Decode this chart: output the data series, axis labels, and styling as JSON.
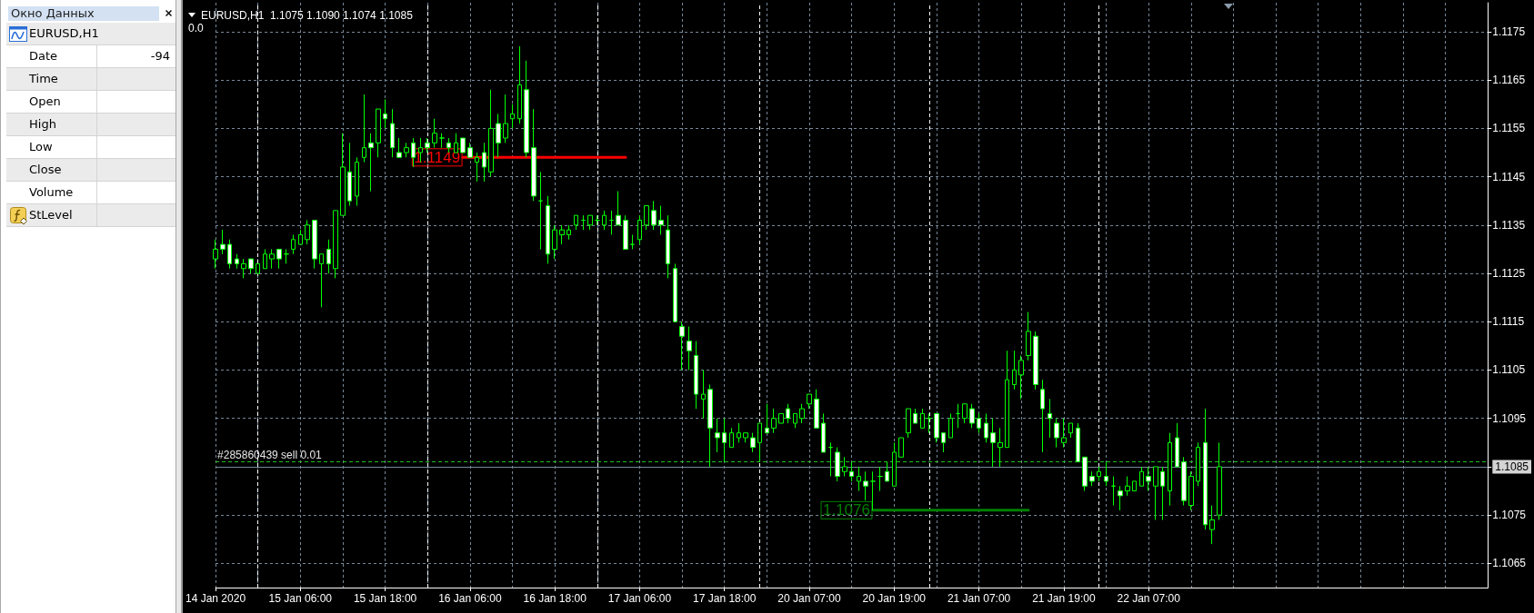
{
  "chart_data": [
    {
      "type": "other",
      "title": "Окно Данных",
      "annotations": [
        "EURUSD,H1",
        "Date",
        "-94",
        "Time",
        "Open",
        "High",
        "Low",
        "Close",
        "Volume",
        "StLevel"
      ]
    },
    {
      "type": "candlestick",
      "title": "EURUSD,H1  1.1075 1.1090 1.1074 1.1085",
      "annotations": [
        "0.0"
      ],
      "categories": [
        "14 Jan 2020",
        null,
        null,
        null,
        null,
        null,
        null,
        null,
        null,
        null,
        null,
        null,
        "15 Jan 06:00",
        null,
        null,
        null,
        null,
        null,
        null,
        null,
        null,
        null,
        null,
        null,
        "15 Jan 18:00",
        null,
        null,
        null,
        null,
        null,
        null,
        null,
        null,
        null,
        null,
        null,
        "16 Jan 06:00",
        null,
        null,
        null,
        null,
        null,
        null,
        null,
        null,
        null,
        null,
        null,
        "16 Jan 18:00",
        null,
        null,
        null,
        null,
        null,
        null,
        null,
        null,
        null,
        null,
        null,
        "17 Jan 06:00",
        null,
        null,
        null,
        null,
        null,
        null,
        null,
        null,
        null,
        null,
        null,
        "17 Jan 18:00",
        null,
        null,
        null,
        null,
        null,
        null,
        null,
        null,
        null,
        null,
        null,
        "20 Jan 07:00",
        null,
        null,
        null,
        null,
        null,
        null,
        null,
        null,
        null,
        null,
        null,
        "20 Jan 19:00",
        null,
        null,
        null,
        null,
        null,
        null,
        null,
        null,
        null,
        null,
        null,
        "21 Jan 07:00",
        null,
        null,
        null,
        null,
        null,
        null,
        null,
        null,
        null,
        null,
        null,
        "21 Jan 19:00",
        null,
        null,
        null,
        null,
        null,
        null,
        null,
        null,
        null,
        null,
        null,
        "22 Jan 07:00",
        null,
        null,
        null,
        null,
        null,
        null,
        null,
        null,
        null,
        null,
        null,
        null,
        null,
        null,
        null,
        null,
        null,
        null,
        null,
        null,
        null,
        null,
        null,
        null,
        null,
        null,
        null,
        null,
        null,
        null,
        null,
        null,
        null,
        null,
        null,
        null,
        null,
        null,
        null,
        null,
        null,
        null,
        null,
        null,
        null,
        null,
        null,
        null
      ],
      "ohlc": [
        [
          1.1128,
          1.1132,
          1.1126,
          1.113
        ],
        [
          1.1131,
          1.1134,
          1.1129,
          1.113
        ],
        [
          1.1131,
          1.1132,
          1.1126,
          1.1127
        ],
        [
          1.1128,
          1.1129,
          1.1126,
          1.1127
        ],
        [
          1.1126,
          1.1128,
          1.1124,
          1.1127
        ],
        [
          1.1128,
          1.1128,
          1.1125,
          1.1126
        ],
        [
          1.1125,
          1.1127,
          1.1125,
          1.1127
        ],
        [
          1.1126,
          1.113,
          1.1126,
          1.1129
        ],
        [
          1.1128,
          1.113,
          1.1126,
          1.1129
        ],
        [
          1.113,
          1.113,
          1.1126,
          1.1128
        ],
        [
          1.1129,
          1.113,
          1.1127,
          1.1129
        ],
        [
          1.113,
          1.1133,
          1.1129,
          1.1132
        ],
        [
          1.1131,
          1.1134,
          1.1131,
          1.1133
        ],
        [
          1.1132,
          1.1136,
          1.1131,
          1.1135
        ],
        [
          1.1136,
          1.1136,
          1.1126,
          1.1128
        ],
        [
          1.1127,
          1.1129,
          1.1118,
          1.1129
        ],
        [
          1.113,
          1.1132,
          1.1125,
          1.1127
        ],
        [
          1.1126,
          1.1138,
          1.1124,
          1.1138
        ],
        [
          1.1137,
          1.1154,
          1.1137,
          1.1147
        ],
        [
          1.1146,
          1.1152,
          1.1139,
          1.114
        ],
        [
          1.1141,
          1.1149,
          1.1139,
          1.1148
        ],
        [
          1.1149,
          1.1162,
          1.1148,
          1.1151
        ],
        [
          1.1152,
          1.1154,
          1.1142,
          1.1151
        ],
        [
          1.1152,
          1.1159,
          1.1149,
          1.1159
        ],
        [
          1.1158,
          1.1161,
          1.1155,
          1.1157
        ],
        [
          1.1156,
          1.1159,
          1.1149,
          1.1151
        ],
        [
          1.115,
          1.1153,
          1.1149,
          1.1149
        ],
        [
          1.115,
          1.1152,
          1.1149,
          1.1151
        ],
        [
          1.1152,
          1.1153,
          1.1147,
          1.1149
        ],
        [
          1.115,
          1.1153,
          1.1148,
          1.1151
        ],
        [
          1.1152,
          1.1153,
          1.115,
          1.1151
        ],
        [
          1.1152,
          1.1157,
          1.1151,
          1.1154
        ],
        [
          1.1153,
          1.1154,
          1.1151,
          1.1153
        ],
        [
          1.1152,
          1.1153,
          1.115,
          1.1151
        ],
        [
          1.115,
          1.1154,
          1.115,
          1.1152
        ],
        [
          1.1153,
          1.1153,
          1.115,
          1.115
        ],
        [
          1.1151,
          1.1152,
          1.1149,
          1.1149
        ],
        [
          1.1148,
          1.115,
          1.1144,
          1.1149
        ],
        [
          1.115,
          1.1152,
          1.1144,
          1.1147
        ],
        [
          1.1146,
          1.1163,
          1.1145,
          1.1155
        ],
        [
          1.1156,
          1.1158,
          1.1149,
          1.1152
        ],
        [
          1.1153,
          1.1162,
          1.1152,
          1.1156
        ],
        [
          1.1157,
          1.116,
          1.1155,
          1.1158
        ],
        [
          1.1157,
          1.1172,
          1.1156,
          1.1164
        ],
        [
          1.1163,
          1.1169,
          1.1149,
          1.115
        ],
        [
          1.1151,
          1.1159,
          1.114,
          1.1141
        ],
        [
          1.114,
          1.1146,
          1.113,
          1.114
        ],
        [
          1.1139,
          1.1141,
          1.1127,
          1.1129
        ],
        [
          1.113,
          1.1135,
          1.1128,
          1.1134
        ],
        [
          1.1133,
          1.1135,
          1.1131,
          1.1134
        ],
        [
          1.1133,
          1.1135,
          1.1132,
          1.1134
        ],
        [
          1.1135,
          1.1137,
          1.1134,
          1.1137
        ],
        [
          1.1136,
          1.1137,
          1.1134,
          1.1136
        ],
        [
          1.1135,
          1.1137,
          1.1134,
          1.1137
        ],
        [
          1.1136,
          1.1137,
          1.1135,
          1.1136
        ],
        [
          1.1135,
          1.1138,
          1.1134,
          1.1137
        ],
        [
          1.1136,
          1.1138,
          1.1133,
          1.1136
        ],
        [
          1.1137,
          1.1142,
          1.1135,
          1.1135
        ],
        [
          1.1136,
          1.1137,
          1.113,
          1.113
        ],
        [
          1.1131,
          1.1133,
          1.113,
          1.1131
        ],
        [
          1.1132,
          1.1137,
          1.1131,
          1.1136
        ],
        [
          1.1135,
          1.1139,
          1.1134,
          1.1139
        ],
        [
          1.1138,
          1.114,
          1.1134,
          1.1135
        ],
        [
          1.1136,
          1.1139,
          1.1133,
          1.1135
        ],
        [
          1.1134,
          1.1137,
          1.1124,
          1.1127
        ],
        [
          1.1126,
          1.1127,
          1.1115,
          1.1115
        ],
        [
          1.1114,
          1.1115,
          1.1105,
          1.1112
        ],
        [
          1.1111,
          1.1114,
          1.1105,
          1.1109
        ],
        [
          1.1108,
          1.1111,
          1.1097,
          1.11
        ],
        [
          1.1099,
          1.1105,
          1.1095,
          1.11
        ],
        [
          1.1101,
          1.1102,
          1.1085,
          1.1093
        ],
        [
          1.1092,
          1.1095,
          1.1088,
          1.1091
        ],
        [
          1.1092,
          1.1095,
          1.1086,
          1.109
        ],
        [
          1.1089,
          1.1093,
          1.1089,
          1.1092
        ],
        [
          1.1091,
          1.1094,
          1.109,
          1.1092
        ],
        [
          1.1091,
          1.1092,
          1.109,
          1.1092
        ],
        [
          1.1091,
          1.1092,
          1.1088,
          1.1089
        ],
        [
          1.109,
          1.1094,
          1.1086,
          1.1094
        ],
        [
          1.1093,
          1.1098,
          1.1092,
          1.1092
        ],
        [
          1.1093,
          1.1097,
          1.1092,
          1.1095
        ],
        [
          1.1094,
          1.1096,
          1.1094,
          1.1096
        ],
        [
          1.1097,
          1.1098,
          1.1094,
          1.1095
        ],
        [
          1.1094,
          1.1096,
          1.1093,
          1.1096
        ],
        [
          1.1095,
          1.1098,
          1.1094,
          1.1097
        ],
        [
          1.1098,
          1.11,
          1.1097,
          1.11
        ],
        [
          1.1099,
          1.1101,
          1.1093,
          1.1093
        ],
        [
          1.1094,
          1.1096,
          1.1088,
          1.1088
        ],
        [
          1.1089,
          1.109,
          1.1083,
          1.1089
        ],
        [
          1.1088,
          1.1089,
          1.1082,
          1.1083
        ],
        [
          1.1084,
          1.1087,
          1.1083,
          1.1085
        ],
        [
          1.1084,
          1.1086,
          1.1082,
          1.1083
        ],
        [
          1.1082,
          1.1085,
          1.108,
          1.1083
        ],
        [
          1.1082,
          1.1084,
          1.1078,
          1.1081
        ],
        [
          1.1082,
          1.1084,
          1.1076,
          1.1082
        ],
        [
          1.1083,
          1.1085,
          1.108,
          1.1083
        ],
        [
          1.1084,
          1.1086,
          1.1082,
          1.1082
        ],
        [
          1.1081,
          1.109,
          1.1081,
          1.1088
        ],
        [
          1.1087,
          1.1091,
          1.1087,
          1.1091
        ],
        [
          1.1092,
          1.1097,
          1.1091,
          1.1097
        ],
        [
          1.1096,
          1.1097,
          1.1094,
          1.1094
        ],
        [
          1.1093,
          1.1097,
          1.1093,
          1.1096
        ],
        [
          1.1095,
          1.1096,
          1.1092,
          1.1095
        ],
        [
          1.1096,
          1.1096,
          1.109,
          1.1091
        ],
        [
          1.1092,
          1.1092,
          1.1088,
          1.109
        ],
        [
          1.1091,
          1.1096,
          1.1091,
          1.1095
        ],
        [
          1.1096,
          1.1098,
          1.1093,
          1.1096
        ],
        [
          1.1095,
          1.1098,
          1.1094,
          1.1098
        ],
        [
          1.1097,
          1.1098,
          1.1093,
          1.1094
        ],
        [
          1.1095,
          1.1096,
          1.1092,
          1.1093
        ],
        [
          1.1094,
          1.1096,
          1.109,
          1.1091
        ],
        [
          1.1092,
          1.1095,
          1.1085,
          1.109
        ],
        [
          1.1089,
          1.1093,
          1.1085,
          1.109
        ],
        [
          1.1089,
          1.1109,
          1.1089,
          1.1103
        ],
        [
          1.1102,
          1.1109,
          1.1101,
          1.1105
        ],
        [
          1.1104,
          1.1108,
          1.1099,
          1.1107
        ],
        [
          1.1108,
          1.1117,
          1.1107,
          1.1113
        ],
        [
          1.1112,
          1.1113,
          1.1101,
          1.1102
        ],
        [
          1.1101,
          1.1103,
          1.1088,
          1.1097
        ],
        [
          1.1096,
          1.1099,
          1.1091,
          1.1095
        ],
        [
          1.1094,
          1.1095,
          1.1089,
          1.1091
        ],
        [
          1.109,
          1.1095,
          1.1089,
          1.1091
        ],
        [
          1.1092,
          1.1094,
          1.1091,
          1.1094
        ],
        [
          1.1093,
          1.1094,
          1.1086,
          1.1086
        ],
        [
          1.1087,
          1.1087,
          1.108,
          1.1081
        ],
        [
          1.1083,
          1.1084,
          1.1081,
          1.1082
        ],
        [
          1.1083,
          1.1085,
          1.1082,
          1.1084
        ],
        [
          1.1083,
          1.1086,
          1.1081,
          1.1082
        ],
        [
          1.1081,
          1.1083,
          1.1077,
          1.1081
        ],
        [
          1.108,
          1.1081,
          1.1076,
          1.1079
        ],
        [
          1.108,
          1.1083,
          1.1079,
          1.1081
        ],
        [
          1.108,
          1.1082,
          1.108,
          1.1082
        ],
        [
          1.1081,
          1.1085,
          1.1081,
          1.1084
        ],
        [
          1.1083,
          1.1085,
          1.108,
          1.1082
        ],
        [
          1.1081,
          1.1085,
          1.1074,
          1.1085
        ],
        [
          1.1084,
          1.1085,
          1.1074,
          1.1081
        ],
        [
          1.108,
          1.1092,
          1.1077,
          1.109
        ],
        [
          1.1091,
          1.1094,
          1.1085,
          1.1085
        ],
        [
          1.1086,
          1.1087,
          1.1077,
          1.1078
        ],
        [
          1.1077,
          1.1084,
          1.1076,
          1.1083
        ],
        [
          1.1082,
          1.109,
          1.1081,
          1.1089
        ],
        [
          1.109,
          1.1097,
          1.1072,
          1.1073
        ],
        [
          1.1072,
          1.1077,
          1.1069,
          1.1074
        ],
        [
          1.1075,
          1.109,
          1.1074,
          1.1085
        ],
        null,
        null,
        null,
        null,
        null,
        null,
        null,
        null,
        null,
        null,
        null,
        null,
        null,
        null,
        null,
        null,
        null,
        null,
        null,
        null,
        null,
        null,
        null,
        null,
        null,
        null,
        null,
        null,
        null,
        null,
        null,
        null,
        null,
        null,
        null,
        null,
        null,
        null
      ],
      "color": "#00ff00",
      "series": [
        {
          "type": "line",
          "color": "#ff0000",
          "values": [
            null,
            null,
            null,
            null,
            null,
            null,
            null,
            null,
            null,
            null,
            null,
            null,
            null,
            null,
            null,
            null,
            null,
            null,
            null,
            null,
            null,
            null,
            null,
            null,
            null,
            null,
            null,
            null,
            null,
            null,
            null,
            null,
            null,
            null,
            null,
            1.1149,
            1.1149,
            1.1149,
            1.1149,
            1.1149,
            1.1149,
            1.1149,
            1.1149,
            1.1149,
            1.1149,
            1.1149,
            1.1149,
            1.1149,
            1.1149,
            1.1149,
            1.1149,
            1.1149,
            1.1149,
            1.1149,
            1.1149,
            1.1149,
            1.1149,
            1.1149,
            1.1149,
            null,
            null,
            null,
            null,
            null,
            null,
            null,
            null,
            null,
            null,
            null,
            null,
            null,
            null,
            null,
            null,
            null,
            null,
            null,
            null,
            null,
            null,
            null,
            null,
            null,
            null,
            null,
            null,
            null,
            null,
            null,
            null,
            null,
            null,
            null,
            null,
            null,
            null,
            null,
            null,
            null,
            null,
            null,
            null,
            null,
            null,
            null,
            null,
            null,
            null,
            null,
            null,
            null,
            null,
            null,
            null,
            null,
            null,
            null,
            null,
            null,
            null,
            null,
            null,
            null,
            null,
            null,
            null,
            null,
            null,
            null,
            null,
            null,
            null,
            null,
            null,
            null,
            null,
            null,
            null,
            null,
            null,
            null,
            null,
            null,
            null,
            null,
            null,
            null,
            null,
            null,
            null,
            null,
            null,
            null,
            null,
            null,
            null,
            null,
            null,
            null,
            null,
            null,
            null,
            null,
            null,
            null,
            null,
            null,
            null,
            null,
            null,
            null,
            null,
            null,
            null,
            null,
            null,
            null,
            null,
            null,
            null
          ],
          "value_labels": [
            null,
            null,
            null,
            null,
            null,
            null,
            null,
            null,
            null,
            null,
            null,
            null,
            null,
            null,
            null,
            null,
            null,
            null,
            null,
            null,
            null,
            null,
            null,
            null,
            null,
            null,
            null,
            null,
            null,
            null,
            null,
            null,
            null,
            null,
            null,
            "1.1149",
            null,
            null,
            null,
            null,
            null,
            null,
            null,
            null,
            null,
            null,
            null,
            null,
            null,
            null,
            null,
            null,
            null,
            null,
            null,
            null,
            null,
            null,
            null,
            null,
            null,
            null,
            null,
            null,
            null,
            null,
            null,
            null,
            null,
            null,
            null,
            null,
            null,
            null,
            null,
            null,
            null,
            null,
            null,
            null,
            null,
            null,
            null,
            null,
            null,
            null,
            null,
            null,
            null,
            null,
            null,
            null,
            null,
            null,
            null,
            null,
            null,
            null,
            null,
            null,
            null,
            null,
            null,
            null,
            null,
            null,
            null,
            null,
            null,
            null,
            null,
            null,
            null,
            null,
            null,
            null,
            null,
            null,
            null,
            null,
            null,
            null,
            null,
            null,
            null,
            null,
            null,
            null,
            null,
            null,
            null,
            null,
            null,
            null,
            null,
            null,
            null,
            null,
            null,
            null,
            null,
            null,
            null,
            null,
            null,
            null,
            null,
            null,
            null,
            null,
            null,
            null,
            null,
            null,
            null,
            null,
            null,
            null,
            null,
            null,
            null,
            null,
            null,
            null,
            null,
            null,
            null,
            null,
            null,
            null,
            null,
            null,
            null,
            null,
            null,
            null,
            null,
            null,
            null,
            null,
            null
          ]
        },
        {
          "type": "line",
          "color": "#008000",
          "values": [
            null,
            null,
            null,
            null,
            null,
            null,
            null,
            null,
            null,
            null,
            null,
            null,
            null,
            null,
            null,
            null,
            null,
            null,
            null,
            null,
            null,
            null,
            null,
            null,
            null,
            null,
            null,
            null,
            null,
            null,
            null,
            null,
            null,
            null,
            null,
            null,
            null,
            null,
            null,
            null,
            null,
            null,
            null,
            null,
            null,
            null,
            null,
            null,
            null,
            null,
            null,
            null,
            null,
            null,
            null,
            null,
            null,
            null,
            null,
            null,
            null,
            null,
            null,
            null,
            null,
            null,
            null,
            null,
            null,
            null,
            null,
            null,
            null,
            null,
            null,
            null,
            null,
            null,
            null,
            null,
            null,
            null,
            null,
            null,
            null,
            null,
            null,
            null,
            null,
            null,
            null,
            null,
            null,
            1.1076,
            1.1076,
            1.1076,
            1.1076,
            1.1076,
            1.1076,
            1.1076,
            1.1076,
            1.1076,
            1.1076,
            1.1076,
            1.1076,
            1.1076,
            1.1076,
            1.1076,
            1.1076,
            1.1076,
            1.1076,
            1.1076,
            1.1076,
            1.1076,
            1.1076,
            1.1076,
            null,
            null,
            null,
            null,
            null,
            null,
            null,
            null,
            null,
            null,
            null,
            null,
            null,
            null,
            null,
            null,
            null,
            null,
            null,
            null,
            null,
            null,
            null,
            null,
            null,
            null,
            null,
            null,
            null,
            null,
            null,
            null,
            null,
            null,
            null,
            null,
            null,
            null,
            null,
            null,
            null,
            null,
            null,
            null,
            null,
            null,
            null,
            null,
            null,
            null,
            null,
            null,
            null,
            null,
            null,
            null,
            null,
            null,
            null,
            null,
            null,
            null,
            null,
            null,
            null
          ],
          "value_labels": [
            null,
            null,
            null,
            null,
            null,
            null,
            null,
            null,
            null,
            null,
            null,
            null,
            null,
            null,
            null,
            null,
            null,
            null,
            null,
            null,
            null,
            null,
            null,
            null,
            null,
            null,
            null,
            null,
            null,
            null,
            null,
            null,
            null,
            null,
            null,
            null,
            null,
            null,
            null,
            null,
            null,
            null,
            null,
            null,
            null,
            null,
            null,
            null,
            null,
            null,
            null,
            null,
            null,
            null,
            null,
            null,
            null,
            null,
            null,
            null,
            null,
            null,
            null,
            null,
            null,
            null,
            null,
            null,
            null,
            null,
            null,
            null,
            null,
            null,
            null,
            null,
            null,
            null,
            null,
            null,
            null,
            null,
            null,
            null,
            null,
            null,
            null,
            null,
            null,
            null,
            null,
            null,
            null,
            "1.1076",
            null,
            null,
            null,
            null,
            null,
            null,
            null,
            null,
            null,
            null,
            null,
            null,
            null,
            null,
            null,
            null,
            null,
            null,
            null,
            null,
            null,
            null,
            null,
            null,
            null,
            null,
            null,
            null,
            null,
            null,
            null,
            null,
            null,
            null,
            null,
            null,
            null,
            null,
            null,
            null,
            null,
            null,
            null,
            null,
            null,
            null,
            null,
            null,
            null,
            null,
            null,
            null,
            null,
            null,
            null,
            null,
            null,
            null,
            null,
            null,
            null,
            null,
            null,
            null,
            null,
            null,
            null,
            null,
            null,
            null,
            null,
            null,
            null,
            null,
            null,
            null,
            null,
            null,
            null,
            null,
            null,
            null,
            null,
            null,
            null,
            null,
            null
          ]
        }
      ],
      "ref_lines": [
        {
          "axis": "y",
          "value": 1.1086,
          "label": "#285860439 sell 0.01",
          "color": "#1fbf1f",
          "line_style": "dashed"
        },
        {
          "axis": "y",
          "value": 1.1085,
          "color": "#778899",
          "line_style": "solid"
        }
      ],
      "ylim": [
        1.106,
        1.1181
      ],
      "yticks": [
        1.1065,
        1.1075,
        1.1085,
        1.1095,
        1.1105,
        1.1115,
        1.1125,
        1.1135,
        1.1145,
        1.1155,
        1.1165,
        1.1175
      ],
      "grid": true
    }
  ]
}
